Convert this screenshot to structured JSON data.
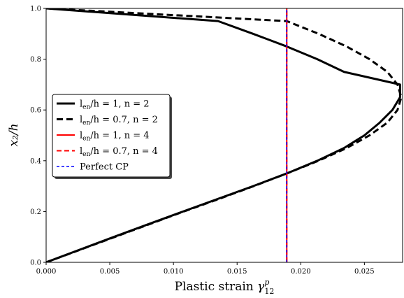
{
  "chart_data": {
    "type": "line",
    "title": "",
    "xlabel_main": "Plastic strain ",
    "xlabel_symbol": "γ",
    "xlabel_sup": "p",
    "xlabel_sub": "12",
    "ylabel": "x₂/h",
    "xlim": [
      0.0,
      0.028
    ],
    "ylim": [
      0.0,
      1.0
    ],
    "xticks": [
      "0.000",
      "0.005",
      "0.010",
      "0.015",
      "0.020",
      "0.025"
    ],
    "xtick_values": [
      0.0,
      0.005,
      0.01,
      0.015,
      0.02,
      0.025
    ],
    "yticks": [
      "0.0",
      "0.2",
      "0.4",
      "0.6",
      "0.8",
      "1.0"
    ],
    "ytick_values": [
      0.0,
      0.2,
      0.4,
      0.6,
      0.8,
      1.0
    ],
    "grid": false,
    "legend_position": "left",
    "series": [
      {
        "name": "l_en/h = 1, n = 2",
        "label_main": "l",
        "label_sub": "en",
        "label_rest": "/h = 1, n = 2",
        "color": "#000000",
        "style": "solid",
        "width": 3,
        "y": [
          0.0,
          0.05,
          0.1,
          0.15,
          0.2,
          0.25,
          0.3,
          0.35,
          0.4,
          0.45,
          0.5,
          0.55,
          0.6,
          0.65,
          0.7,
          0.75,
          0.8,
          0.85,
          0.9,
          0.95,
          1.0
        ],
        "x": [
          0.0,
          0.00265,
          0.00532,
          0.00802,
          0.01075,
          0.0135,
          0.01625,
          0.0189,
          0.0213,
          0.0234,
          0.025,
          0.0262,
          0.0272,
          0.0278,
          0.0278,
          0.0234,
          0.0213,
          0.0189,
          0.01625,
          0.0135,
          0.0
        ]
      },
      {
        "name": "l_en/h = 0.7, n = 2",
        "label_main": "l",
        "label_sub": "en",
        "label_rest": "/h = 0.7, n = 2",
        "color": "#000000",
        "style": "dashed",
        "width": 3,
        "y": [
          0.0,
          0.05,
          0.1,
          0.15,
          0.2,
          0.25,
          0.3,
          0.35,
          0.4,
          0.45,
          0.5,
          0.55,
          0.6,
          0.65,
          0.7,
          0.75,
          0.8,
          0.85,
          0.9,
          0.95,
          1.0
        ],
        "x": [
          0.0,
          0.0027,
          0.0054,
          0.0081,
          0.0108,
          0.0136,
          0.0163,
          0.0189,
          0.0214,
          0.0236,
          0.0254,
          0.0268,
          0.0276,
          0.0279,
          0.0276,
          0.0268,
          0.0254,
          0.0236,
          0.0214,
          0.0189,
          0.0
        ]
      },
      {
        "name": "l_en/h = 1, n = 4",
        "label_main": "l",
        "label_sub": "en",
        "label_rest": "/h = 1, n = 4",
        "color": "#ff0000",
        "style": "solid",
        "width": 2,
        "y": [
          0.0,
          1.0
        ],
        "x": [
          0.0189,
          0.0189
        ]
      },
      {
        "name": "l_en/h = 0.7, n = 4",
        "label_main": "l",
        "label_sub": "en",
        "label_rest": "/h = 0.7, n = 4",
        "color": "#ff0000",
        "style": "dashed",
        "width": 2,
        "y": [
          0.0,
          1.0
        ],
        "x": [
          0.0189,
          0.0189
        ]
      },
      {
        "name": "Perfect CP",
        "label_main": "Perfect CP",
        "label_sub": "",
        "label_rest": "",
        "color": "#0000ff",
        "style": "dashed",
        "width": 1.5,
        "y": [
          0.0,
          1.0
        ],
        "x": [
          0.0189,
          0.0189
        ]
      }
    ]
  }
}
